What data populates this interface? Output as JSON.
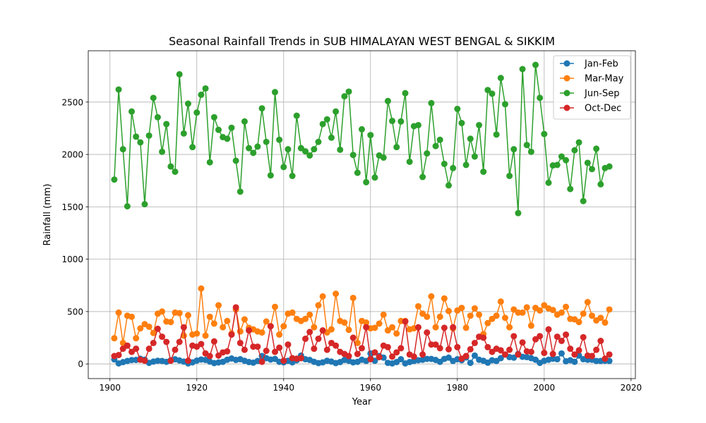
{
  "chart_data": {
    "type": "line",
    "title": "Seasonal Rainfall Trends in SUB HIMALAYAN WEST BENGAL & SIKKIM",
    "xlabel": "Year",
    "ylabel": "Rainfall (mm)",
    "xlim": [
      1895,
      2021
    ],
    "ylim": [
      -140,
      2990
    ],
    "xticks": [
      1900,
      1920,
      1940,
      1960,
      1980,
      2000,
      2020
    ],
    "yticks": [
      0,
      500,
      1000,
      1500,
      2000,
      2500
    ],
    "grid": true,
    "legend_position": "top-right",
    "marker": "circle",
    "x_start": 1901,
    "x_end": 2015,
    "series": [
      {
        "name": "Jan-Feb",
        "color": "#1f77b4",
        "values": [
          43,
          5,
          17,
          28,
          37,
          38,
          49,
          40,
          10,
          22,
          30,
          28,
          20,
          35,
          44,
          33,
          22,
          5,
          15,
          32,
          42,
          38,
          22,
          8,
          14,
          20,
          40,
          52,
          38,
          45,
          30,
          18,
          12,
          28,
          75,
          55,
          42,
          48,
          20,
          15,
          30,
          15,
          35,
          80,
          45,
          38,
          20,
          8,
          15,
          30,
          22,
          8,
          18,
          38,
          30,
          15,
          20,
          40,
          28,
          100,
          30,
          75,
          60,
          10,
          5,
          18,
          45,
          5,
          18,
          28,
          35,
          40,
          48,
          48,
          38,
          20,
          48,
          60,
          28,
          45,
          35,
          62,
          10,
          80,
          40,
          30,
          12,
          35,
          28,
          55,
          90,
          65,
          60,
          95,
          68,
          65,
          55,
          40,
          10,
          30,
          40,
          50,
          45,
          100,
          25,
          35,
          20,
          80,
          45,
          40,
          40,
          28,
          28,
          30,
          28
        ]
      },
      {
        "name": "Mar-May",
        "color": "#ff7f0e",
        "values": [
          245,
          490,
          200,
          460,
          450,
          245,
          340,
          380,
          355,
          295,
          480,
          500,
          405,
          400,
          490,
          485,
          270,
          465,
          280,
          290,
          720,
          270,
          450,
          385,
          560,
          350,
          410,
          290,
          520,
          310,
          425,
          345,
          330,
          310,
          300,
          405,
          360,
          545,
          280,
          360,
          480,
          490,
          430,
          410,
          430,
          470,
          350,
          560,
          645,
          300,
          330,
          670,
          410,
          395,
          325,
          630,
          200,
          410,
          395,
          340,
          345,
          385,
          470,
          320,
          350,
          290,
          410,
          410,
          330,
          340,
          550,
          480,
          450,
          645,
          350,
          450,
          625,
          505,
          340,
          510,
          535,
          345,
          460,
          530,
          470,
          285,
          390,
          430,
          460,
          595,
          440,
          350,
          520,
          490,
          490,
          540,
          365,
          535,
          510,
          560,
          530,
          515,
          470,
          490,
          545,
          430,
          425,
          400,
          480,
          590,
          460,
          415,
          440,
          395,
          520
        ]
      },
      {
        "name": "Jun-Sep",
        "color": "#2ca02c",
        "values": [
          1760,
          2620,
          2050,
          1505,
          2410,
          2170,
          2115,
          1525,
          2180,
          2540,
          2355,
          2025,
          2290,
          1885,
          1835,
          2765,
          2200,
          2485,
          2070,
          2400,
          2570,
          2630,
          1925,
          2355,
          2235,
          2165,
          2150,
          2255,
          1940,
          1645,
          2315,
          2060,
          2015,
          2075,
          2440,
          2120,
          1800,
          2595,
          2140,
          1880,
          2050,
          1795,
          2370,
          2060,
          2030,
          1990,
          2050,
          2120,
          2290,
          2335,
          2160,
          2410,
          2045,
          2555,
          2600,
          1995,
          1825,
          2240,
          1735,
          2185,
          1780,
          1990,
          1970,
          2510,
          2320,
          2070,
          2315,
          2585,
          1930,
          2270,
          2280,
          1785,
          2010,
          2490,
          2080,
          2140,
          1910,
          1705,
          1870,
          2435,
          2300,
          1900,
          2150,
          1980,
          2280,
          1835,
          2615,
          2580,
          2190,
          2730,
          2480,
          1795,
          2050,
          1440,
          2815,
          2090,
          2025,
          2855,
          2540,
          2195,
          1730,
          1895,
          1900,
          1980,
          1945,
          1670,
          2040,
          2115,
          1555,
          1920,
          1860,
          2055,
          1715,
          1870,
          1885
        ]
      },
      {
        "name": "Oct-Dec",
        "color": "#d62728",
        "values": [
          75,
          85,
          145,
          175,
          115,
          145,
          40,
          30,
          145,
          200,
          335,
          260,
          210,
          30,
          135,
          210,
          350,
          30,
          175,
          165,
          190,
          100,
          75,
          215,
          80,
          110,
          120,
          280,
          540,
          200,
          135,
          320,
          165,
          165,
          20,
          125,
          360,
          115,
          155,
          30,
          185,
          55,
          50,
          55,
          240,
          305,
          145,
          240,
          320,
          135,
          200,
          175,
          115,
          95,
          75,
          250,
          95,
          150,
          350,
          45,
          110,
          65,
          175,
          160,
          70,
          110,
          150,
          405,
          90,
          70,
          350,
          90,
          300,
          185,
          185,
          150,
          345,
          140,
          350,
          160,
          50,
          75,
          140,
          200,
          260,
          250,
          160,
          115,
          145,
          130,
          90,
          135,
          265,
          90,
          205,
          120,
          115,
          235,
          265,
          105,
          330,
          95,
          260,
          220,
          280,
          145,
          90,
          130,
          255,
          80,
          75,
          135,
          220,
          50,
          90
        ]
      }
    ]
  }
}
